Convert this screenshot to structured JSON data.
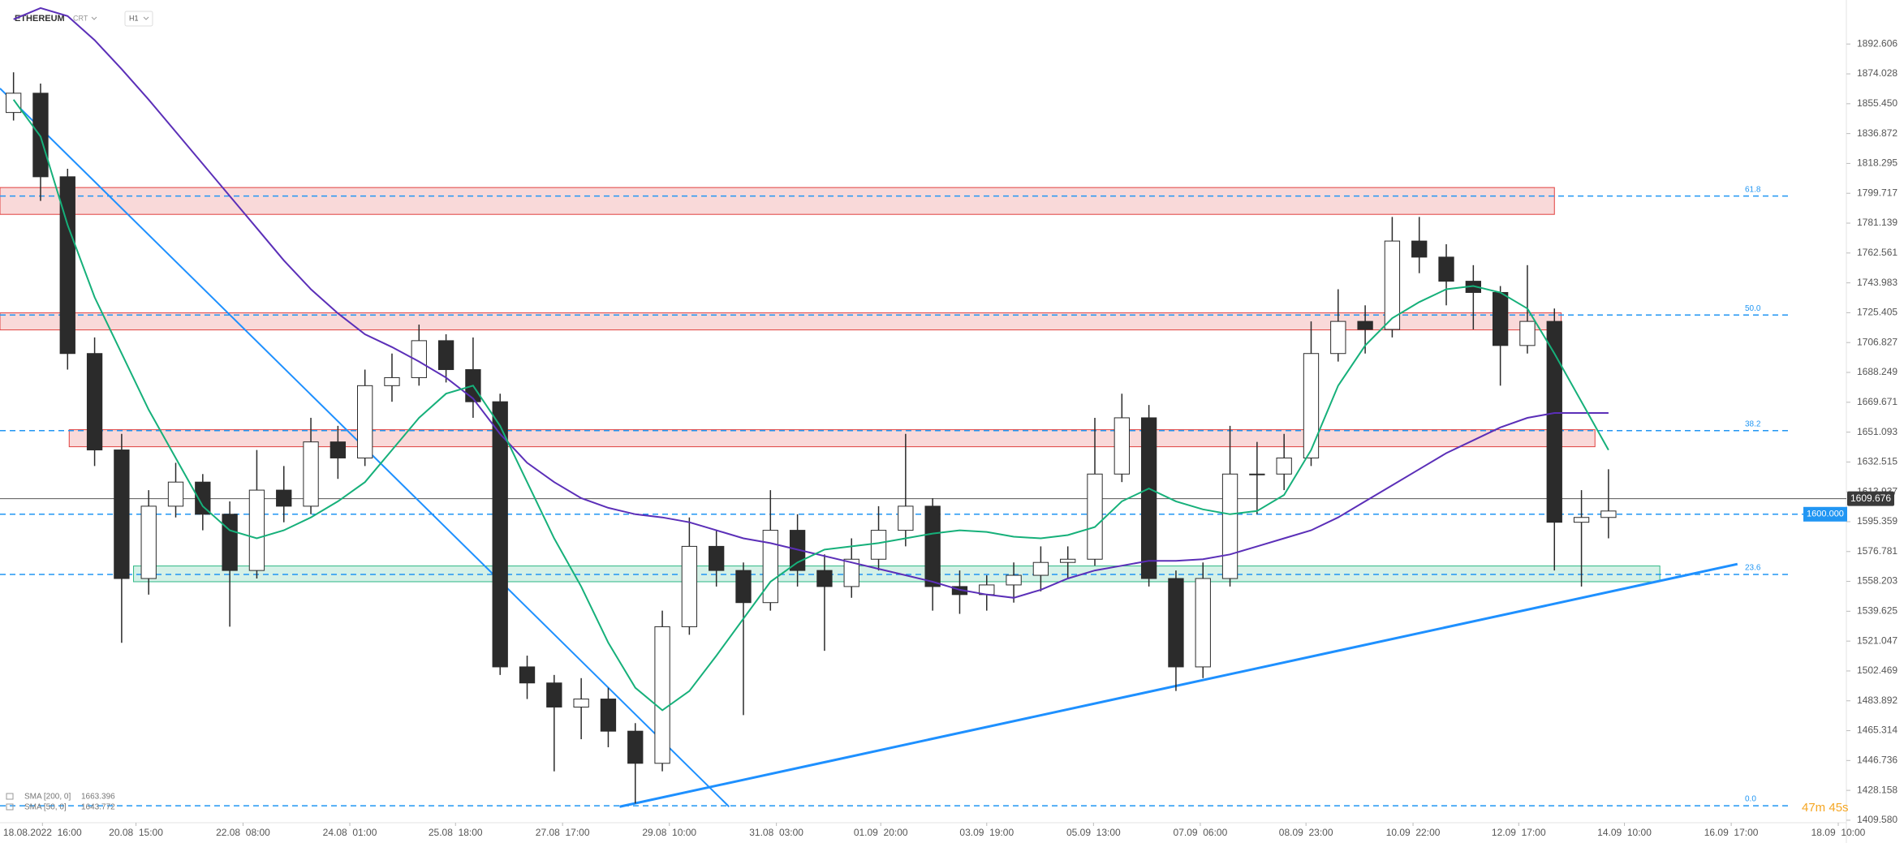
{
  "header": {
    "symbol": "ETHEREUM",
    "account": "CRT",
    "interval": "H1"
  },
  "chart_data": {
    "type": "candlestick",
    "open": [
      1850,
      1862,
      1810,
      1700,
      1640,
      1560,
      1605,
      1620,
      1600,
      1565,
      1615,
      1605,
      1645,
      1635,
      1680,
      1685,
      1708,
      1690,
      1670,
      1505,
      1495,
      1480,
      1485,
      1465,
      1445,
      1530,
      1580,
      1565,
      1545,
      1590,
      1565,
      1555,
      1572,
      1590,
      1605,
      1555,
      1550,
      1556,
      1562,
      1570,
      1572,
      1625,
      1660,
      1560,
      1505,
      1560,
      1625,
      1625,
      1635,
      1700,
      1720,
      1715,
      1770,
      1760,
      1745,
      1738,
      1705,
      1720,
      1595,
      1598
    ],
    "high": [
      1875,
      1868,
      1815,
      1710,
      1650,
      1615,
      1632,
      1625,
      1608,
      1640,
      1630,
      1660,
      1655,
      1690,
      1700,
      1718,
      1712,
      1710,
      1675,
      1512,
      1500,
      1498,
      1492,
      1470,
      1540,
      1598,
      1590,
      1570,
      1615,
      1600,
      1575,
      1585,
      1605,
      1650,
      1610,
      1565,
      1562,
      1570,
      1580,
      1580,
      1660,
      1675,
      1668,
      1565,
      1570,
      1655,
      1645,
      1650,
      1720,
      1740,
      1730,
      1785,
      1785,
      1768,
      1755,
      1742,
      1755,
      1728,
      1615,
      1628
    ],
    "low": [
      1845,
      1795,
      1690,
      1630,
      1520,
      1550,
      1598,
      1590,
      1530,
      1560,
      1595,
      1600,
      1622,
      1630,
      1670,
      1680,
      1682,
      1660,
      1500,
      1485,
      1440,
      1460,
      1455,
      1420,
      1440,
      1525,
      1555,
      1475,
      1540,
      1555,
      1515,
      1548,
      1565,
      1580,
      1540,
      1538,
      1540,
      1545,
      1552,
      1560,
      1568,
      1620,
      1555,
      1490,
      1498,
      1555,
      1600,
      1615,
      1630,
      1695,
      1700,
      1710,
      1750,
      1730,
      1715,
      1680,
      1700,
      1565,
      1555,
      1585
    ],
    "close": [
      1862,
      1810,
      1700,
      1640,
      1560,
      1605,
      1620,
      1600,
      1565,
      1615,
      1605,
      1645,
      1635,
      1680,
      1685,
      1708,
      1690,
      1670,
      1505,
      1495,
      1480,
      1485,
      1465,
      1445,
      1530,
      1580,
      1565,
      1545,
      1590,
      1565,
      1555,
      1572,
      1590,
      1605,
      1555,
      1550,
      1556,
      1562,
      1570,
      1572,
      1625,
      1660,
      1560,
      1505,
      1560,
      1625,
      1625,
      1635,
      1700,
      1720,
      1715,
      1770,
      1760,
      1745,
      1738,
      1705,
      1720,
      1595,
      1598,
      1602
    ],
    "up_color": "#ffffff",
    "down_color": "#2b2b2b",
    "wick_color": "#2b2b2b",
    "series": [
      {
        "name": "SMA [200, 0]",
        "color": "#5b2fb8",
        "last": 1663.396,
        "values": [
          1908,
          1915,
          1910,
          1895,
          1877,
          1858,
          1838,
          1818,
          1798,
          1778,
          1758,
          1740,
          1725,
          1712,
          1704,
          1695,
          1685,
          1672,
          1650,
          1632,
          1620,
          1610,
          1604,
          1600,
          1598,
          1595,
          1590,
          1585,
          1582,
          1578,
          1574,
          1570,
          1566,
          1562,
          1558,
          1553,
          1550,
          1548,
          1553,
          1560,
          1565,
          1568,
          1571,
          1571,
          1572,
          1575,
          1580,
          1585,
          1590,
          1598,
          1608,
          1618,
          1628,
          1638,
          1646,
          1654,
          1660,
          1663,
          1663,
          1663
        ]
      },
      {
        "name": "SMA [50, 0]",
        "color": "#16b07a",
        "last": 1643.772,
        "values": [
          1858,
          1835,
          1780,
          1735,
          1700,
          1665,
          1635,
          1605,
          1590,
          1585,
          1590,
          1598,
          1608,
          1620,
          1640,
          1660,
          1675,
          1680,
          1655,
          1620,
          1585,
          1555,
          1520,
          1492,
          1478,
          1490,
          1512,
          1535,
          1558,
          1570,
          1578,
          1580,
          1582,
          1585,
          1588,
          1590,
          1589,
          1586,
          1585,
          1587,
          1592,
          1608,
          1616,
          1608,
          1603,
          1600,
          1602,
          1612,
          1640,
          1680,
          1705,
          1722,
          1732,
          1740,
          1742,
          1738,
          1728,
          1700,
          1670,
          1640
        ]
      }
    ],
    "zones": [
      {
        "from": -0.5,
        "to": 57.0,
        "low": 1786.6,
        "high": 1803.3,
        "color": "#e0403f"
      },
      {
        "from": -0.5,
        "to": 57.25,
        "low": 1714.7,
        "high": 1725.3,
        "color": "#e0403f"
      },
      {
        "from": 2.06,
        "to": 58.5,
        "low": 1642.0,
        "high": 1652.6,
        "color": "#e0403f"
      },
      {
        "from": 4.44,
        "to": 60.9,
        "low": 1558.0,
        "high": 1567.8,
        "color": "#2fb886"
      }
    ],
    "fib_levels": [
      {
        "label": "61.8",
        "price": 1798
      },
      {
        "label": "50.0",
        "price": 1724
      },
      {
        "label": "38.2",
        "price": 1652
      },
      {
        "label": "23.6",
        "price": 1562.5
      },
      {
        "label": "0.0",
        "price": 1418.6
      }
    ],
    "fib_color": "#2196f3",
    "price_line": {
      "price": 1600,
      "label": "1600.000"
    },
    "trendlines": [
      {
        "x": [
          -0.5,
          26.47
        ],
        "y": [
          1865,
          1418
        ]
      },
      {
        "x": [
          22.42,
          63.77
        ],
        "y": [
          1418,
          1569
        ]
      }
    ],
    "trend_color": "#1e90ff",
    "current_price": 1609.676,
    "timer": "47m 45s",
    "xlim": [
      -0.5,
      67.8
    ],
    "ylim": [
      1405,
      1920
    ],
    "yticks": [
      1892.606,
      1874.028,
      {
        "value": 1855.45,
        "label": "1855.450"
      },
      1836.872,
      1818.295,
      1799.717,
      1781.139,
      1762.561,
      1743.983,
      1725.405,
      1706.827,
      1688.249,
      1669.671,
      1651.093,
      1632.515,
      1613.937,
      1595.359,
      1576.781,
      1558.203,
      1539.625,
      1521.047,
      1502.469,
      1483.892,
      1465.314,
      1446.736,
      1428.158,
      {
        "value": 1409.58,
        "label": "1409.580"
      }
    ],
    "xticks": [
      {
        "value": 1.07,
        "label": "18.08.2022  16:00"
      },
      {
        "value": 4.53,
        "label": "20.08  15:00"
      },
      {
        "value": 8.49,
        "label": "22.08  08:00"
      },
      {
        "value": 12.44,
        "label": "24.08  01:00"
      },
      {
        "value": 16.35,
        "label": "25.08  18:00"
      },
      {
        "value": 20.31,
        "label": "27.08  17:00"
      },
      {
        "value": 24.26,
        "label": "29.08  10:00"
      },
      {
        "value": 28.22,
        "label": "31.08  03:00"
      },
      {
        "value": 32.08,
        "label": "01.09  20:00"
      },
      {
        "value": 36.0,
        "label": "03.09  19:00"
      },
      {
        "value": 39.95,
        "label": "05.09  13:00"
      },
      {
        "value": 43.9,
        "label": "07.09  06:00"
      },
      {
        "value": 47.81,
        "label": "08.09  23:00"
      },
      {
        "value": 51.77,
        "label": "10.09  22:00"
      },
      {
        "value": 55.68,
        "label": "12.09  17:00"
      },
      {
        "value": 59.59,
        "label": "14.09  10:00"
      },
      {
        "value": 63.54,
        "label": "16.09  17:00"
      },
      {
        "value": 67.5,
        "label": "18.09  10:00"
      }
    ]
  }
}
